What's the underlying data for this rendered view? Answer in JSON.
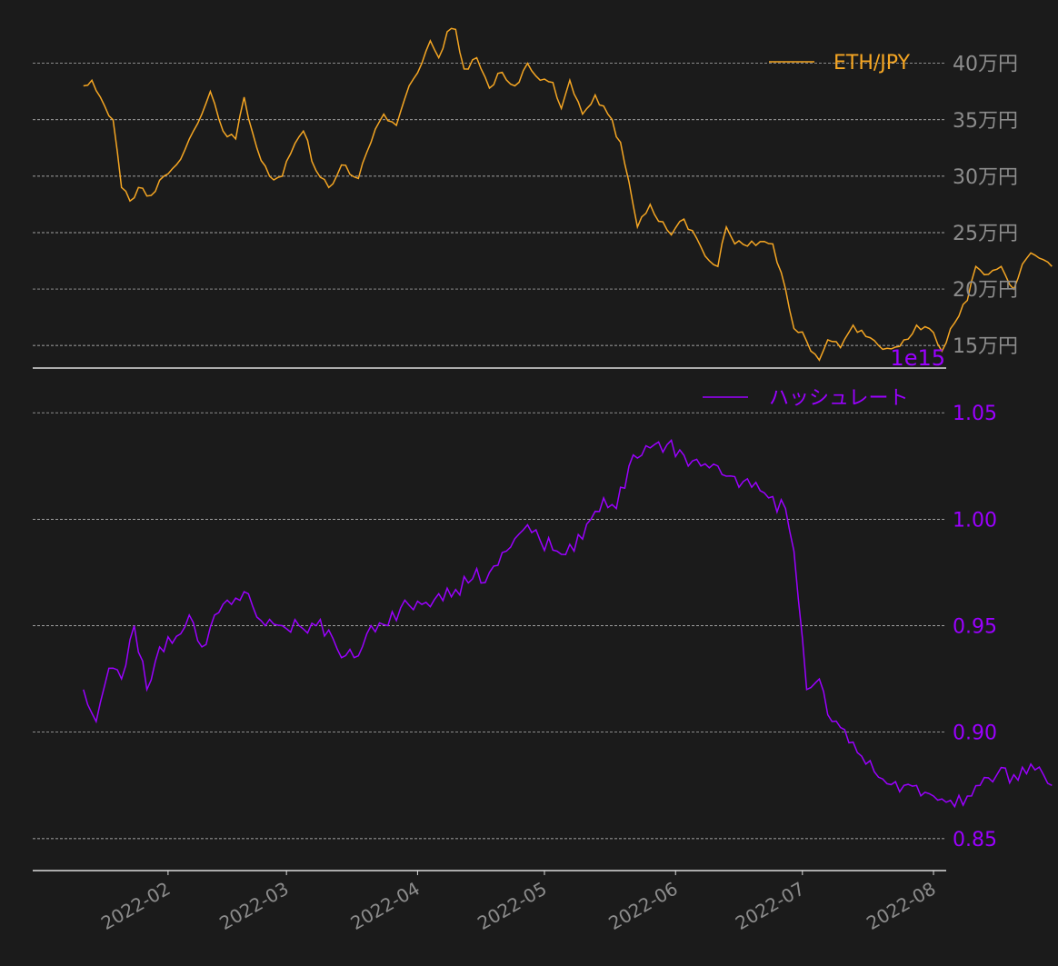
{
  "colors": {
    "background": "#1b1b1b",
    "eth": "#f5a623",
    "hash": "#9b00ff",
    "grid": "#cccccc",
    "axis": "#dddddd",
    "tick_gray": "#8c8c8c"
  },
  "chart_data": [
    {
      "type": "line",
      "series": [
        {
          "name": "ETH/JPY",
          "color": "#f5a623"
        }
      ],
      "ylim": [
        130000,
        440000
      ],
      "yticks": [
        150000,
        200000,
        250000,
        300000,
        350000,
        400000
      ],
      "ytick_labels": [
        "15万円",
        "20万円",
        "25万円",
        "30万円",
        "35万円",
        "40万円"
      ],
      "legend": "top-right",
      "grid": true,
      "anchors": [
        [
          "2022-01-12",
          380000
        ],
        [
          "2022-01-14",
          385000
        ],
        [
          "2022-01-16",
          370000
        ],
        [
          "2022-01-19",
          350000
        ],
        [
          "2022-01-21",
          290000
        ],
        [
          "2022-01-23",
          278000
        ],
        [
          "2022-01-25",
          290000
        ],
        [
          "2022-01-28",
          283000
        ],
        [
          "2022-01-31",
          300000
        ],
        [
          "2022-02-04",
          315000
        ],
        [
          "2022-02-07",
          340000
        ],
        [
          "2022-02-09",
          355000
        ],
        [
          "2022-02-11",
          375000
        ],
        [
          "2022-02-14",
          340000
        ],
        [
          "2022-02-17",
          333000
        ],
        [
          "2022-02-19",
          370000
        ],
        [
          "2022-02-22",
          325000
        ],
        [
          "2022-02-25",
          300000
        ],
        [
          "2022-02-28",
          300000
        ],
        [
          "2022-03-02",
          320000
        ],
        [
          "2022-03-05",
          340000
        ],
        [
          "2022-03-08",
          305000
        ],
        [
          "2022-03-11",
          290000
        ],
        [
          "2022-03-14",
          310000
        ],
        [
          "2022-03-18",
          298000
        ],
        [
          "2022-03-21",
          330000
        ],
        [
          "2022-03-24",
          355000
        ],
        [
          "2022-03-27",
          345000
        ],
        [
          "2022-03-30",
          380000
        ],
        [
          "2022-04-02",
          400000
        ],
        [
          "2022-04-04",
          420000
        ],
        [
          "2022-04-06",
          405000
        ],
        [
          "2022-04-08",
          428000
        ],
        [
          "2022-04-10",
          430000
        ],
        [
          "2022-04-12",
          395000
        ],
        [
          "2022-04-15",
          405000
        ],
        [
          "2022-04-18",
          378000
        ],
        [
          "2022-04-21",
          392000
        ],
        [
          "2022-04-24",
          380000
        ],
        [
          "2022-04-27",
          400000
        ],
        [
          "2022-04-30",
          385000
        ],
        [
          "2022-05-03",
          383000
        ],
        [
          "2022-05-05",
          360000
        ],
        [
          "2022-05-07",
          385000
        ],
        [
          "2022-05-10",
          355000
        ],
        [
          "2022-05-13",
          372000
        ],
        [
          "2022-05-16",
          355000
        ],
        [
          "2022-05-19",
          330000
        ],
        [
          "2022-05-21",
          295000
        ],
        [
          "2022-05-23",
          255000
        ],
        [
          "2022-05-26",
          275000
        ],
        [
          "2022-05-28",
          260000
        ],
        [
          "2022-05-31",
          248000
        ],
        [
          "2022-06-03",
          262000
        ],
        [
          "2022-06-06",
          245000
        ],
        [
          "2022-06-09",
          225000
        ],
        [
          "2022-06-11",
          220000
        ],
        [
          "2022-06-13",
          255000
        ],
        [
          "2022-06-15",
          240000
        ],
        [
          "2022-06-18",
          238000
        ],
        [
          "2022-06-21",
          242000
        ],
        [
          "2022-06-24",
          240000
        ],
        [
          "2022-06-27",
          200000
        ],
        [
          "2022-06-29",
          165000
        ],
        [
          "2022-07-01",
          162000
        ],
        [
          "2022-07-03",
          145000
        ],
        [
          "2022-07-05",
          137000
        ],
        [
          "2022-07-07",
          155000
        ],
        [
          "2022-07-10",
          148000
        ],
        [
          "2022-07-13",
          168000
        ],
        [
          "2022-07-16",
          158000
        ],
        [
          "2022-07-19",
          150000
        ],
        [
          "2022-07-22",
          147000
        ],
        [
          "2022-07-25",
          155000
        ],
        [
          "2022-07-28",
          168000
        ],
        [
          "2022-07-31",
          165000
        ],
        [
          "2022-08-03",
          145000
        ],
        [
          "2022-08-06",
          170000
        ],
        [
          "2022-08-09",
          190000
        ],
        [
          "2022-08-11",
          220000
        ],
        [
          "2022-08-14",
          213000
        ],
        [
          "2022-08-17",
          220000
        ],
        [
          "2022-08-20",
          200000
        ],
        [
          "2022-08-22",
          222000
        ],
        [
          "2022-08-24",
          232000
        ],
        [
          "2022-08-27",
          226000
        ],
        [
          "2022-08-29",
          220000
        ]
      ]
    },
    {
      "type": "line",
      "series": [
        {
          "name": "ハッシュレート",
          "color": "#9b00ff"
        }
      ],
      "ylim": [
        835000000000000.0,
        1068000000000000.0
      ],
      "yticks": [
        850000000000000.0,
        900000000000000.0,
        950000000000000.0,
        1000000000000000.0,
        1050000000000000.0
      ],
      "ytick_labels": [
        "0.85",
        "0.90",
        "0.95",
        "1.00",
        "1.05"
      ],
      "offset_label": "1e15",
      "legend": "top-right",
      "grid": true,
      "anchors": [
        [
          "2022-01-12",
          920000000000000.0
        ],
        [
          "2022-01-15",
          905000000000000.0
        ],
        [
          "2022-01-18",
          930000000000000.0
        ],
        [
          "2022-01-21",
          925000000000000.0
        ],
        [
          "2022-01-24",
          950000000000000.0
        ],
        [
          "2022-01-27",
          920000000000000.0
        ],
        [
          "2022-01-30",
          940000000000000.0
        ],
        [
          "2022-02-03",
          945000000000000.0
        ],
        [
          "2022-02-06",
          955000000000000.0
        ],
        [
          "2022-02-09",
          940000000000000.0
        ],
        [
          "2022-02-12",
          955000000000000.0
        ],
        [
          "2022-02-16",
          960000000000000.0
        ],
        [
          "2022-02-20",
          965000000000000.0
        ],
        [
          "2022-02-24",
          950000000000000.0
        ],
        [
          "2022-02-28",
          950000000000000.0
        ],
        [
          "2022-03-04",
          950000000000000.0
        ],
        [
          "2022-03-08",
          950000000000000.0
        ],
        [
          "2022-03-11",
          948000000000000.0
        ],
        [
          "2022-03-14",
          935000000000000.0
        ],
        [
          "2022-03-17",
          935000000000000.0
        ],
        [
          "2022-03-21",
          950000000000000.0
        ],
        [
          "2022-03-25",
          950000000000000.0
        ],
        [
          "2022-03-29",
          962000000000000.0
        ],
        [
          "2022-04-02",
          960000000000000.0
        ],
        [
          "2022-04-06",
          965000000000000.0
        ],
        [
          "2022-04-10",
          967000000000000.0
        ],
        [
          "2022-04-14",
          972000000000000.0
        ],
        [
          "2022-04-18",
          975000000000000.0
        ],
        [
          "2022-04-22",
          985000000000000.0
        ],
        [
          "2022-04-26",
          995000000000000.0
        ],
        [
          "2022-04-30",
          990000000000000.0
        ],
        [
          "2022-05-04",
          985000000000000.0
        ],
        [
          "2022-05-08",
          985000000000000.0
        ],
        [
          "2022-05-12",
          1000000000000000.0
        ],
        [
          "2022-05-15",
          1010000000000000.0
        ],
        [
          "2022-05-18",
          1005000000000000.0
        ],
        [
          "2022-05-21",
          1025000000000000.0
        ],
        [
          "2022-05-24",
          1030000000000000.0
        ],
        [
          "2022-05-27",
          1035000000000000.0
        ],
        [
          "2022-05-30",
          1035000000000000.0
        ],
        [
          "2022-06-03",
          1030000000000000.0
        ],
        [
          "2022-06-07",
          1025000000000000.0
        ],
        [
          "2022-06-11",
          1025000000000000.0
        ],
        [
          "2022-06-15",
          1020000000000000.0
        ],
        [
          "2022-06-19",
          1015000000000000.0
        ],
        [
          "2022-06-23",
          1010000000000000.0
        ],
        [
          "2022-06-27",
          1005000000000000.0
        ],
        [
          "2022-06-29",
          985000000000000.0
        ],
        [
          "2022-07-02",
          920000000000000.0
        ],
        [
          "2022-07-05",
          925000000000000.0
        ],
        [
          "2022-07-08",
          905000000000000.0
        ],
        [
          "2022-07-12",
          895000000000000.0
        ],
        [
          "2022-07-16",
          885000000000000.0
        ],
        [
          "2022-07-20",
          878000000000000.0
        ],
        [
          "2022-07-24",
          872000000000000.0
        ],
        [
          "2022-07-28",
          875000000000000.0
        ],
        [
          "2022-08-01",
          870000000000000.0
        ],
        [
          "2022-08-05",
          868000000000000.0
        ],
        [
          "2022-08-09",
          870000000000000.0
        ],
        [
          "2022-08-12",
          875000000000000.0
        ],
        [
          "2022-08-16",
          880000000000000.0
        ],
        [
          "2022-08-20",
          880000000000000.0
        ],
        [
          "2022-08-24",
          885000000000000.0
        ],
        [
          "2022-08-27",
          880000000000000.0
        ],
        [
          "2022-08-29",
          875000000000000.0
        ]
      ]
    }
  ],
  "x_axis": {
    "ticks": [
      "2022-02-01",
      "2022-03-01",
      "2022-04-01",
      "2022-05-01",
      "2022-06-01",
      "2022-07-01",
      "2022-08-01"
    ],
    "labels": [
      "2022-02",
      "2022-03",
      "2022-04",
      "2022-05",
      "2022-06",
      "2022-07",
      "2022-08"
    ]
  }
}
